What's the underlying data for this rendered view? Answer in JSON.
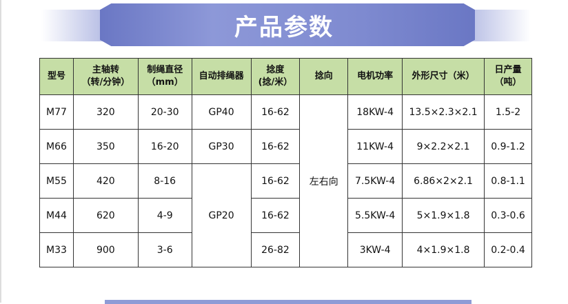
{
  "title": "产品参数",
  "headers": [
    [
      "型号",
      ""
    ],
    [
      "主轴转",
      "（转/分钟）"
    ],
    [
      "制绳直径",
      "（mm）"
    ],
    [
      "自动排绳器",
      ""
    ],
    [
      "捻度",
      "(捻/米）"
    ],
    [
      "捻向",
      ""
    ],
    [
      "电机功率",
      ""
    ],
    [
      "外形尺寸（米）",
      ""
    ],
    [
      "日产量",
      "（吨）"
    ]
  ],
  "rows": [
    {
      "model": "M77",
      "speed": "320",
      "dia": "20-30",
      "rope": "GP40",
      "twist": "16-62",
      "power": "18KW-4",
      "size": "13.5×2.3×2.1",
      "output": "1.5-2"
    },
    {
      "model": "M66",
      "speed": "350",
      "dia": "16-20",
      "rope": "GP30",
      "twist": "16-62",
      "power": "11KW-4",
      "size": "9×2.2×2.1",
      "output": "0.9-1.2"
    },
    {
      "model": "M55",
      "speed": "420",
      "dia": "8-16",
      "rope": "GP20",
      "twist": "16-62",
      "power": "7.5KW-4",
      "size": "6.86×2×2.1",
      "output": "0.8-1.1"
    },
    {
      "model": "M44",
      "speed": "620",
      "dia": "4-9",
      "twist": "16-62",
      "power": "5.5KW-4",
      "size": "5×1.9×1.8",
      "output": "0.3-0.6"
    },
    {
      "model": "M33",
      "speed": "900",
      "dia": "3-6",
      "twist": "26-82",
      "power": "3KW-4",
      "size": "4×1.9×1.8",
      "output": "0.2-0.4"
    }
  ],
  "direction": "左右向"
}
